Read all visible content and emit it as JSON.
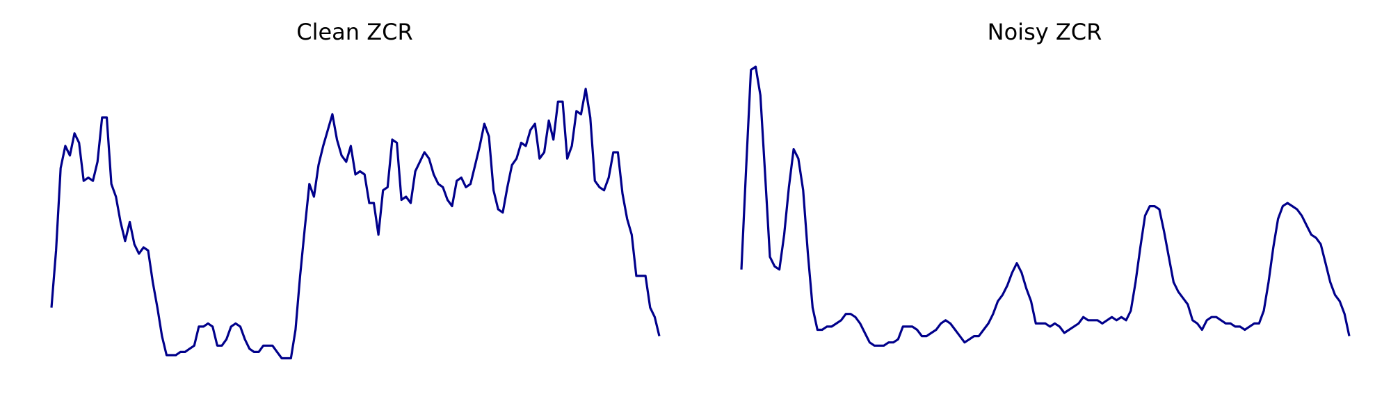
{
  "colors": {
    "line": "#00008b",
    "background": "#ffffff"
  },
  "chart_data": [
    {
      "type": "line",
      "title": "Clean ZCR",
      "xlabel": "",
      "ylabel": "",
      "grid": false,
      "axes_visible": false,
      "ylim": [
        0,
        1
      ],
      "series": [
        {
          "values": [
            0.24,
            0.42,
            0.68,
            0.75,
            0.72,
            0.79,
            0.76,
            0.64,
            0.65,
            0.64,
            0.7,
            0.84,
            0.84,
            0.63,
            0.59,
            0.51,
            0.45,
            0.51,
            0.44,
            0.41,
            0.43,
            0.42,
            0.32,
            0.24,
            0.15,
            0.09,
            0.09,
            0.09,
            0.1,
            0.1,
            0.11,
            0.12,
            0.18,
            0.18,
            0.19,
            0.18,
            0.12,
            0.12,
            0.14,
            0.18,
            0.19,
            0.18,
            0.14,
            0.11,
            0.1,
            0.1,
            0.12,
            0.12,
            0.12,
            0.1,
            0.08,
            0.08,
            0.08,
            0.17,
            0.34,
            0.49,
            0.63,
            0.59,
            0.69,
            0.75,
            0.8,
            0.85,
            0.77,
            0.72,
            0.7,
            0.75,
            0.66,
            0.67,
            0.66,
            0.57,
            0.57,
            0.47,
            0.61,
            0.62,
            0.77,
            0.76,
            0.58,
            0.59,
            0.57,
            0.67,
            0.7,
            0.73,
            0.71,
            0.66,
            0.63,
            0.62,
            0.58,
            0.56,
            0.64,
            0.65,
            0.62,
            0.63,
            0.69,
            0.75,
            0.82,
            0.78,
            0.61,
            0.55,
            0.54,
            0.62,
            0.69,
            0.71,
            0.76,
            0.75,
            0.8,
            0.82,
            0.71,
            0.73,
            0.83,
            0.77,
            0.89,
            0.89,
            0.71,
            0.75,
            0.86,
            0.85,
            0.93,
            0.84,
            0.64,
            0.62,
            0.61,
            0.65,
            0.73,
            0.73,
            0.6,
            0.52,
            0.47,
            0.34,
            0.34,
            0.34,
            0.24,
            0.21,
            0.15
          ]
        }
      ]
    },
    {
      "type": "line",
      "title": "Noisy ZCR",
      "xlabel": "",
      "ylabel": "",
      "grid": false,
      "axes_visible": false,
      "ylim": [
        0,
        1
      ],
      "series": [
        {
          "values": [
            0.36,
            0.68,
            0.99,
            1.0,
            0.91,
            0.66,
            0.4,
            0.37,
            0.36,
            0.47,
            0.62,
            0.74,
            0.71,
            0.61,
            0.41,
            0.24,
            0.17,
            0.17,
            0.18,
            0.18,
            0.19,
            0.2,
            0.22,
            0.22,
            0.21,
            0.19,
            0.16,
            0.13,
            0.12,
            0.12,
            0.12,
            0.13,
            0.13,
            0.14,
            0.18,
            0.18,
            0.18,
            0.17,
            0.15,
            0.15,
            0.16,
            0.17,
            0.19,
            0.2,
            0.19,
            0.17,
            0.15,
            0.13,
            0.14,
            0.15,
            0.15,
            0.17,
            0.19,
            0.22,
            0.26,
            0.28,
            0.31,
            0.35,
            0.38,
            0.35,
            0.3,
            0.26,
            0.19,
            0.19,
            0.19,
            0.18,
            0.19,
            0.18,
            0.16,
            0.17,
            0.18,
            0.19,
            0.21,
            0.2,
            0.2,
            0.2,
            0.19,
            0.2,
            0.21,
            0.2,
            0.21,
            0.2,
            0.23,
            0.32,
            0.43,
            0.53,
            0.56,
            0.56,
            0.55,
            0.48,
            0.4,
            0.32,
            0.29,
            0.27,
            0.25,
            0.2,
            0.19,
            0.17,
            0.2,
            0.21,
            0.21,
            0.2,
            0.19,
            0.19,
            0.18,
            0.18,
            0.17,
            0.18,
            0.19,
            0.19,
            0.23,
            0.32,
            0.43,
            0.52,
            0.56,
            0.57,
            0.56,
            0.55,
            0.53,
            0.5,
            0.47,
            0.46,
            0.44,
            0.38,
            0.32,
            0.28,
            0.26,
            0.22,
            0.15
          ]
        }
      ]
    }
  ]
}
